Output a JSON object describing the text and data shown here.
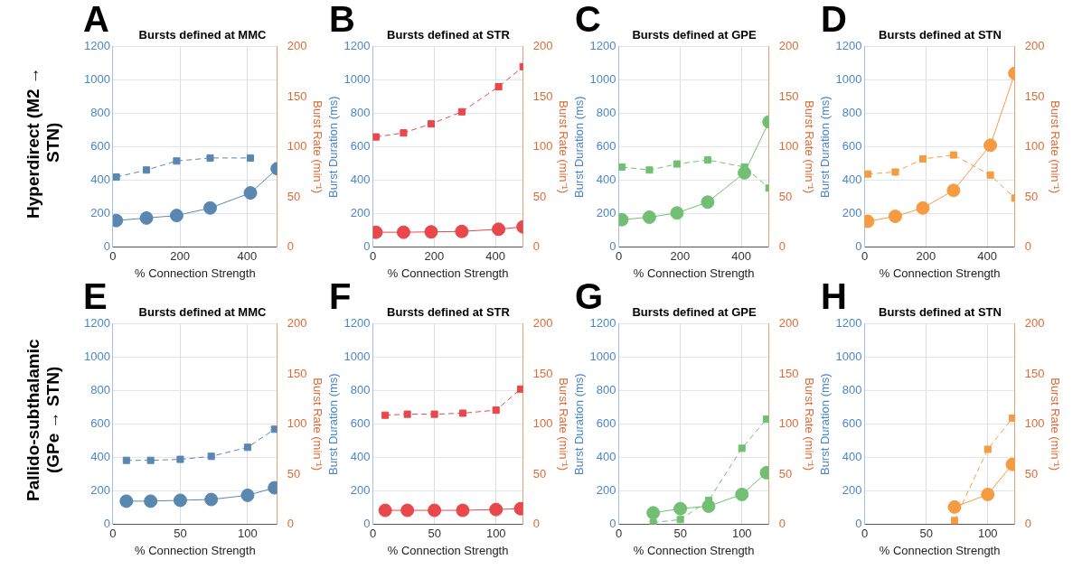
{
  "chart_data": [
    {
      "type": "line",
      "title": "Bursts defined at MMC",
      "xlabel": "% Connection Strength",
      "y2label": "Burst Rate (min⁻¹)",
      "annotations": [
        "A",
        "Hyperdirect (M2 → STN)"
      ],
      "x": [
        10,
        100,
        190,
        290,
        410,
        490
      ],
      "xlim": [
        0,
        490
      ],
      "xticks": [
        0,
        200,
        400
      ],
      "ylim": [
        0,
        1200
      ],
      "yticks": [
        0,
        200,
        400,
        600,
        800,
        1000,
        1200
      ],
      "y2lim": [
        0,
        200
      ],
      "y2ticks": [
        0,
        50,
        100,
        150,
        200
      ],
      "grid": true,
      "series": [
        {
          "color": "#5a87b0",
          "marker": "circle",
          "line_style": "solid",
          "axis": "y",
          "values": [
            160,
            175,
            190,
            235,
            325,
            470
          ]
        },
        {
          "color": "#5a87b0",
          "marker": "square",
          "line_style": "dashed",
          "axis": "y2",
          "values": [
            70,
            77,
            86,
            89,
            89,
            null
          ]
        }
      ]
    },
    {
      "type": "line",
      "title": "Bursts defined at STR",
      "xlabel": "% Connection Strength",
      "ylabel": "Burst Duration (ms)",
      "y2label": "Burst Rate (min⁻¹)",
      "annotations": [
        "B"
      ],
      "x": [
        10,
        100,
        190,
        290,
        410,
        490
      ],
      "xlim": [
        0,
        490
      ],
      "xticks": [
        0,
        200,
        400
      ],
      "ylim": [
        0,
        1200
      ],
      "yticks": [
        0,
        200,
        400,
        600,
        800,
        1000,
        1200
      ],
      "y2lim": [
        0,
        200
      ],
      "y2ticks": [
        0,
        50,
        100,
        150,
        200
      ],
      "grid": true,
      "series": [
        {
          "color": "#e8474c",
          "marker": "circle",
          "line_style": "solid",
          "axis": "y",
          "values": [
            90,
            90,
            92,
            95,
            108,
            122
          ]
        },
        {
          "color": "#e8474c",
          "marker": "square",
          "line_style": "dashed",
          "axis": "y2",
          "values": [
            110,
            114,
            123,
            135,
            160,
            180
          ]
        }
      ]
    },
    {
      "type": "line",
      "title": "Bursts defined at GPE",
      "xlabel": "% Connection Strength",
      "ylabel": "Burst Duration (ms)",
      "y2label": "Burst Rate (min⁻¹)",
      "annotations": [
        "C"
      ],
      "x": [
        10,
        100,
        190,
        290,
        410,
        490
      ],
      "xlim": [
        0,
        490
      ],
      "xticks": [
        0,
        200,
        400
      ],
      "ylim": [
        0,
        1200
      ],
      "yticks": [
        0,
        200,
        400,
        600,
        800,
        1000,
        1200
      ],
      "y2lim": [
        0,
        200
      ],
      "y2ticks": [
        0,
        50,
        100,
        150,
        200
      ],
      "grid": true,
      "series": [
        {
          "color": "#72bf73",
          "marker": "circle",
          "line_style": "solid",
          "axis": "y",
          "values": [
            165,
            180,
            205,
            270,
            445,
            750
          ]
        },
        {
          "color": "#72bf73",
          "marker": "square",
          "line_style": "dashed",
          "axis": "y2",
          "values": [
            80,
            77,
            83,
            87,
            80,
            59
          ]
        }
      ]
    },
    {
      "type": "line",
      "title": "Bursts defined at STN",
      "xlabel": "% Connection Strength",
      "ylabel": "Burst Duration (ms)",
      "y2label": "Burst Rate (min⁻¹)",
      "annotations": [
        "D"
      ],
      "x": [
        10,
        100,
        190,
        290,
        410,
        490
      ],
      "xlim": [
        0,
        490
      ],
      "xticks": [
        0,
        200,
        400
      ],
      "ylim": [
        0,
        1200
      ],
      "yticks": [
        0,
        200,
        400,
        600,
        800,
        1000,
        1200
      ],
      "y2lim": [
        0,
        200
      ],
      "y2ticks": [
        0,
        50,
        100,
        150,
        200
      ],
      "grid": true,
      "series": [
        {
          "color": "#f59c42",
          "marker": "circle",
          "line_style": "solid",
          "axis": "y",
          "values": [
            155,
            185,
            235,
            340,
            610,
            1040
          ]
        },
        {
          "color": "#f59c42",
          "marker": "square",
          "line_style": "dashed",
          "axis": "y2",
          "values": [
            73,
            75,
            88,
            92,
            72,
            49
          ]
        }
      ]
    },
    {
      "type": "line",
      "title": "Bursts defined at MMC",
      "xlabel": "% Connection Strength",
      "y2label": "Burst Rate (min⁻¹)",
      "annotations": [
        "E",
        "Pallido-subthalamic (GPe → STN)"
      ],
      "x": [
        10,
        28,
        50,
        73,
        100,
        120
      ],
      "xlim": [
        0,
        122
      ],
      "xticks": [
        0,
        50,
        100
      ],
      "ylim": [
        0,
        1200
      ],
      "yticks": [
        0,
        200,
        400,
        600,
        800,
        1000,
        1200
      ],
      "y2lim": [
        0,
        200
      ],
      "y2ticks": [
        0,
        50,
        100,
        150,
        200
      ],
      "grid": true,
      "series": [
        {
          "color": "#5a87b0",
          "marker": "circle",
          "line_style": "solid",
          "axis": "y",
          "values": [
            140,
            140,
            145,
            150,
            175,
            220
          ]
        },
        {
          "color": "#5a87b0",
          "marker": "square",
          "line_style": "dashed",
          "axis": "y2",
          "values": [
            64,
            64,
            65,
            68,
            77,
            95
          ]
        }
      ]
    },
    {
      "type": "line",
      "title": "Bursts defined at STR",
      "xlabel": "% Connection Strength",
      "ylabel": "Burst Duration (ms)",
      "y2label": "Burst Rate (min⁻¹)",
      "annotations": [
        "F"
      ],
      "x": [
        10,
        28,
        50,
        73,
        100,
        120
      ],
      "xlim": [
        0,
        122
      ],
      "xticks": [
        0,
        50,
        100
      ],
      "ylim": [
        0,
        1200
      ],
      "yticks": [
        0,
        200,
        400,
        600,
        800,
        1000,
        1200
      ],
      "y2lim": [
        0,
        200
      ],
      "y2ticks": [
        0,
        50,
        100,
        150,
        200
      ],
      "grid": true,
      "series": [
        {
          "color": "#e8474c",
          "marker": "circle",
          "line_style": "solid",
          "axis": "y",
          "values": [
            85,
            85,
            85,
            85,
            90,
            95
          ]
        },
        {
          "color": "#e8474c",
          "marker": "square",
          "line_style": "dashed",
          "axis": "y2",
          "values": [
            109,
            110,
            110,
            111,
            114,
            135
          ]
        }
      ]
    },
    {
      "type": "line",
      "title": "Bursts defined at GPE",
      "xlabel": "% Connection Strength",
      "ylabel": "Burst Duration (ms)",
      "y2label": "Burst Rate (min⁻¹)",
      "annotations": [
        "G"
      ],
      "x": [
        28,
        50,
        73,
        100,
        120
      ],
      "xlim": [
        0,
        122
      ],
      "xticks": [
        0,
        50,
        100
      ],
      "ylim": [
        0,
        1200
      ],
      "yticks": [
        0,
        200,
        400,
        600,
        800,
        1000,
        1200
      ],
      "y2lim": [
        0,
        200
      ],
      "y2ticks": [
        0,
        50,
        100,
        150,
        200
      ],
      "grid": true,
      "series": [
        {
          "color": "#72bf73",
          "marker": "circle",
          "line_style": "solid",
          "axis": "y",
          "values": [
            70,
            95,
            110,
            180,
            310
          ]
        },
        {
          "color": "#72bf73",
          "marker": "square",
          "line_style": "dashed",
          "axis": "y2",
          "values": [
            2,
            5,
            24,
            76,
            105
          ]
        }
      ]
    },
    {
      "type": "line",
      "title": "Bursts defined at STN",
      "xlabel": "% Connection Strength",
      "ylabel": "Burst Duration (ms)",
      "y2label": "Burst Rate (min⁻¹)",
      "annotations": [
        "H"
      ],
      "x": [
        73,
        100,
        120
      ],
      "xlim": [
        0,
        122
      ],
      "xticks": [
        0,
        50,
        100
      ],
      "ylim": [
        0,
        1200
      ],
      "yticks": [
        0,
        200,
        400,
        600,
        800,
        1000,
        1200
      ],
      "y2lim": [
        0,
        200
      ],
      "y2ticks": [
        0,
        50,
        100,
        150,
        200
      ],
      "grid": true,
      "series": [
        {
          "color": "#f59c42",
          "marker": "circle",
          "line_style": "solid",
          "axis": "y",
          "values": [
            105,
            180,
            360
          ]
        },
        {
          "color": "#f59c42",
          "marker": "square",
          "line_style": "dashed",
          "axis": "y2",
          "values": [
            4,
            75,
            106
          ]
        }
      ]
    }
  ]
}
